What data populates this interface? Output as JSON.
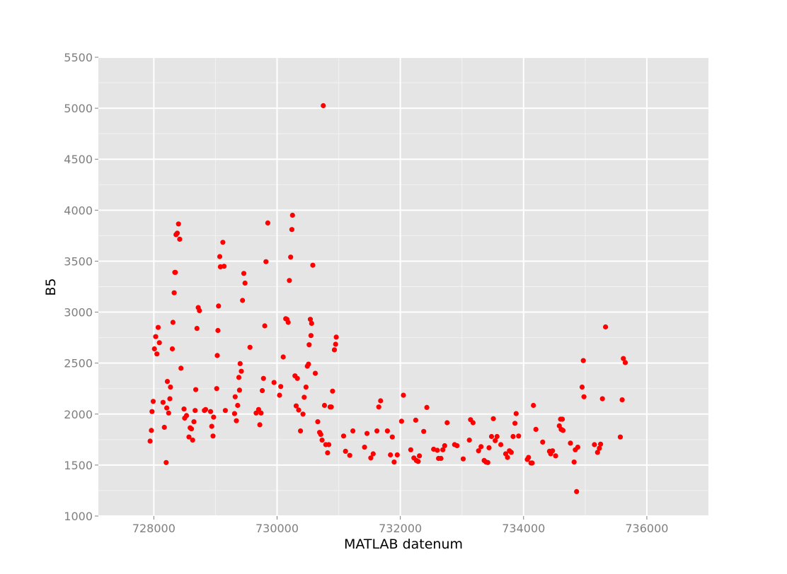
{
  "chart_data": {
    "type": "scatter",
    "xlabel": "MATLAB datenum",
    "ylabel": "B5",
    "xlim": [
      727100,
      737000
    ],
    "ylim": [
      1000,
      5500
    ],
    "xticks": [
      728000,
      730000,
      732000,
      734000,
      736000
    ],
    "yticks": [
      1000,
      1500,
      2000,
      2500,
      3000,
      3500,
      4000,
      4500,
      5000,
      5500
    ],
    "grid": true,
    "colors": {
      "panel": "#e5e5e5",
      "grid_major": "#ffffff",
      "grid_minor": "#f2f2f2",
      "point": "#ff0000"
    },
    "series": [
      {
        "color": "#ff0000",
        "points": [
          [
            727940,
            1735
          ],
          [
            727960,
            1840
          ],
          [
            727970,
            2025
          ],
          [
            727990,
            2125
          ],
          [
            728010,
            2640
          ],
          [
            728030,
            2760
          ],
          [
            728050,
            2590
          ],
          [
            728070,
            2850
          ],
          [
            728090,
            2700
          ],
          [
            728150,
            2115
          ],
          [
            728170,
            1870
          ],
          [
            728200,
            1525
          ],
          [
            728210,
            2060
          ],
          [
            728220,
            2320
          ],
          [
            728240,
            2010
          ],
          [
            728260,
            2150
          ],
          [
            728270,
            2265
          ],
          [
            728300,
            2640
          ],
          [
            728310,
            2900
          ],
          [
            728330,
            3190
          ],
          [
            728340,
            3390
          ],
          [
            728350,
            3390
          ],
          [
            728360,
            3760
          ],
          [
            728380,
            3775
          ],
          [
            728400,
            3865
          ],
          [
            728420,
            3715
          ],
          [
            728440,
            2450
          ],
          [
            728490,
            2050
          ],
          [
            728500,
            1960
          ],
          [
            728530,
            1985
          ],
          [
            728570,
            1775
          ],
          [
            728590,
            1865
          ],
          [
            728610,
            1855
          ],
          [
            728630,
            1745
          ],
          [
            728650,
            1925
          ],
          [
            728670,
            2035
          ],
          [
            728680,
            2240
          ],
          [
            728700,
            2840
          ],
          [
            728720,
            3045
          ],
          [
            728740,
            3015
          ],
          [
            728820,
            2035
          ],
          [
            728840,
            2045
          ],
          [
            728920,
            2025
          ],
          [
            728940,
            1880
          ],
          [
            728960,
            1785
          ],
          [
            728970,
            1970
          ],
          [
            729020,
            2250
          ],
          [
            729030,
            2575
          ],
          [
            729040,
            2820
          ],
          [
            729050,
            3060
          ],
          [
            729070,
            3545
          ],
          [
            729080,
            3445
          ],
          [
            729120,
            3685
          ],
          [
            729140,
            3450
          ],
          [
            729160,
            2035
          ],
          [
            729310,
            2005
          ],
          [
            729320,
            2170
          ],
          [
            729340,
            1935
          ],
          [
            729360,
            2085
          ],
          [
            729380,
            2360
          ],
          [
            729390,
            2235
          ],
          [
            729400,
            2495
          ],
          [
            729420,
            2420
          ],
          [
            729440,
            3115
          ],
          [
            729460,
            3380
          ],
          [
            729480,
            3285
          ],
          [
            729560,
            2655
          ],
          [
            729660,
            2010
          ],
          [
            729700,
            2045
          ],
          [
            729720,
            1895
          ],
          [
            729740,
            2010
          ],
          [
            729760,
            2230
          ],
          [
            729780,
            2350
          ],
          [
            729800,
            2865
          ],
          [
            729820,
            3495
          ],
          [
            729850,
            3875
          ],
          [
            729950,
            2310
          ],
          [
            730040,
            2185
          ],
          [
            730060,
            2270
          ],
          [
            730100,
            2560
          ],
          [
            730140,
            2935
          ],
          [
            730160,
            2930
          ],
          [
            730180,
            2900
          ],
          [
            730200,
            3310
          ],
          [
            730220,
            3540
          ],
          [
            730240,
            3810
          ],
          [
            730250,
            3950
          ],
          [
            730290,
            2375
          ],
          [
            730310,
            2080
          ],
          [
            730330,
            2350
          ],
          [
            730350,
            2040
          ],
          [
            730380,
            1835
          ],
          [
            730420,
            2000
          ],
          [
            730440,
            2165
          ],
          [
            730470,
            2265
          ],
          [
            730490,
            2470
          ],
          [
            730510,
            2490
          ],
          [
            730520,
            2680
          ],
          [
            730540,
            2930
          ],
          [
            730550,
            2770
          ],
          [
            730560,
            2890
          ],
          [
            730580,
            3460
          ],
          [
            730620,
            2400
          ],
          [
            730660,
            1925
          ],
          [
            730690,
            1820
          ],
          [
            730710,
            1800
          ],
          [
            730730,
            1745
          ],
          [
            730750,
            5025
          ],
          [
            730770,
            2085
          ],
          [
            730790,
            1700
          ],
          [
            730820,
            1620
          ],
          [
            730840,
            1700
          ],
          [
            730860,
            2070
          ],
          [
            730880,
            2070
          ],
          [
            730900,
            2225
          ],
          [
            730930,
            2630
          ],
          [
            730950,
            2685
          ],
          [
            730960,
            2755
          ],
          [
            731080,
            1785
          ],
          [
            731110,
            1635
          ],
          [
            731180,
            1595
          ],
          [
            731230,
            1835
          ],
          [
            731420,
            1675
          ],
          [
            731460,
            1810
          ],
          [
            731520,
            1570
          ],
          [
            731560,
            1610
          ],
          [
            731620,
            1835
          ],
          [
            731650,
            2070
          ],
          [
            731680,
            2130
          ],
          [
            731790,
            1835
          ],
          [
            731840,
            1600
          ],
          [
            731870,
            1775
          ],
          [
            731900,
            1530
          ],
          [
            731950,
            1600
          ],
          [
            732020,
            1930
          ],
          [
            732050,
            2185
          ],
          [
            732170,
            1650
          ],
          [
            732220,
            1570
          ],
          [
            732250,
            1940
          ],
          [
            732260,
            1545
          ],
          [
            732290,
            1535
          ],
          [
            732310,
            1590
          ],
          [
            732380,
            1830
          ],
          [
            732430,
            2065
          ],
          [
            732540,
            1655
          ],
          [
            732600,
            1645
          ],
          [
            732620,
            1565
          ],
          [
            732660,
            1565
          ],
          [
            732690,
            1650
          ],
          [
            732720,
            1690
          ],
          [
            732760,
            1915
          ],
          [
            732880,
            1700
          ],
          [
            732920,
            1690
          ],
          [
            733020,
            1560
          ],
          [
            733120,
            1745
          ],
          [
            733140,
            1945
          ],
          [
            733180,
            1915
          ],
          [
            733270,
            1640
          ],
          [
            733310,
            1680
          ],
          [
            733360,
            1545
          ],
          [
            733390,
            1530
          ],
          [
            733420,
            1525
          ],
          [
            733440,
            1670
          ],
          [
            733480,
            1780
          ],
          [
            733510,
            1955
          ],
          [
            733540,
            1740
          ],
          [
            733570,
            1780
          ],
          [
            733630,
            1700
          ],
          [
            733710,
            1610
          ],
          [
            733740,
            1575
          ],
          [
            733770,
            1640
          ],
          [
            733800,
            1625
          ],
          [
            733830,
            1780
          ],
          [
            733860,
            1910
          ],
          [
            733880,
            2005
          ],
          [
            733920,
            1785
          ],
          [
            734060,
            1555
          ],
          [
            734080,
            1575
          ],
          [
            734120,
            1520
          ],
          [
            734140,
            1520
          ],
          [
            734160,
            2085
          ],
          [
            734200,
            1850
          ],
          [
            734310,
            1725
          ],
          [
            734420,
            1635
          ],
          [
            734440,
            1610
          ],
          [
            734470,
            1640
          ],
          [
            734520,
            1590
          ],
          [
            734580,
            1885
          ],
          [
            734600,
            1950
          ],
          [
            734610,
            1850
          ],
          [
            734630,
            1950
          ],
          [
            734640,
            1840
          ],
          [
            734760,
            1715
          ],
          [
            734820,
            1530
          ],
          [
            734840,
            1650
          ],
          [
            734860,
            1240
          ],
          [
            734880,
            1675
          ],
          [
            734950,
            2265
          ],
          [
            734970,
            2525
          ],
          [
            734980,
            2170
          ],
          [
            735150,
            1700
          ],
          [
            735200,
            1625
          ],
          [
            735230,
            1665
          ],
          [
            735250,
            1705
          ],
          [
            735280,
            2150
          ],
          [
            735330,
            2855
          ],
          [
            735570,
            1775
          ],
          [
            735600,
            2140
          ],
          [
            735620,
            2545
          ],
          [
            735650,
            2505
          ]
        ]
      }
    ]
  }
}
